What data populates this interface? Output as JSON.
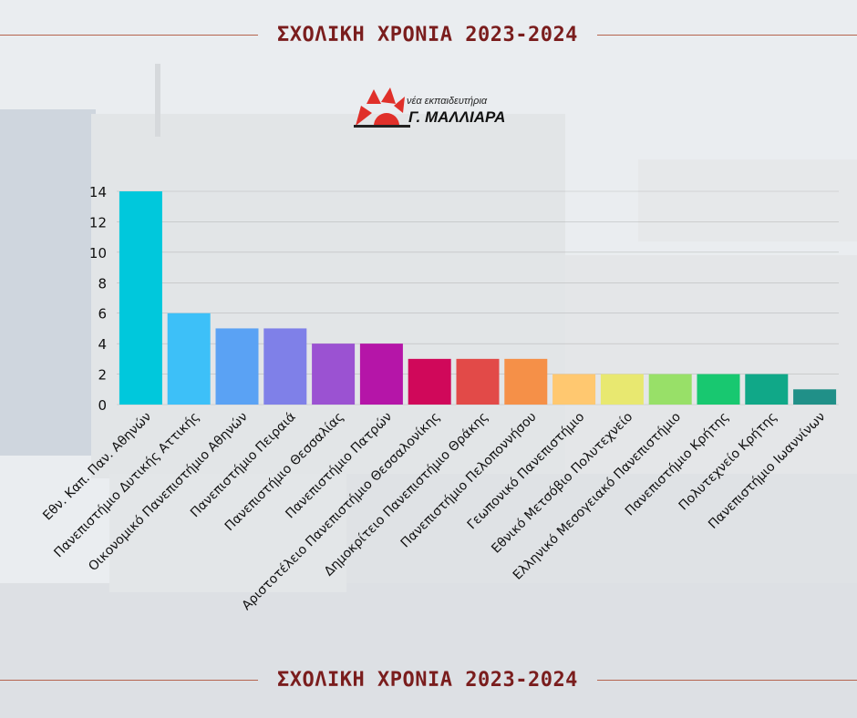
{
  "header": {
    "title": "ΣΧΟΛΙΚΗ ΧΡΟΝΙΑ 2023-2024"
  },
  "footer": {
    "title": "ΣΧΟΛΙΚΗ ΧΡΟΝΙΑ 2023-2024"
  },
  "logo": {
    "line1": "νέα εκπαιδευτήρια",
    "line2": "Γ. ΜΑΛΛΙΑΡΑ",
    "icon": "sun-emblem-icon",
    "color": "#e0302a"
  },
  "colors": {
    "banner_text": "#7a1d1d",
    "banner_line": "#b5644e"
  },
  "chart_data": {
    "type": "bar",
    "title": "",
    "xlabel": "",
    "ylabel": "",
    "ylim": [
      0,
      14
    ],
    "yticks": [
      0,
      2,
      4,
      6,
      8,
      10,
      12,
      14
    ],
    "grid": true,
    "categories": [
      "Εθν. Καπ. Παν. Αθηνών",
      "Πανεπιστήμιο Δυτικής Αττικής",
      "Οικονομικό Πανεπιστήμιο Αθηνών",
      "Πανεπιστήμιο Πειραιά",
      "Πανεπιστήμιο Θεσσαλίας",
      "Πανεπιστήμιο Πατρών",
      "Αριστοτέλειο Πανεπιστήμιο Θεσσαλονίκης",
      "Δημοκρίτειο Πανεπιστήμιο Θράκης",
      "Πανεπιστήμιο Πελοποννήσου",
      "Γεωπονικό Πανεπιστήμιο",
      "Εθνικό Μετσόβιο Πολυτεχνείο",
      "Ελληνικό Μεσογειακό Πανεπιστήμιο",
      "Πανεπιστήμιο Κρήτης",
      "Πολυτεχνείο Κρήτης",
      "Πανεπιστήμιο Ιωαννίνων"
    ],
    "values": [
      14,
      6,
      5,
      5,
      4,
      4,
      3,
      3,
      3,
      2,
      2,
      2,
      2,
      2,
      1
    ],
    "bar_colors": [
      "#00c8dc",
      "#3dc0f8",
      "#5aa2f4",
      "#7f80e8",
      "#9b52d2",
      "#b515a8",
      "#d0085a",
      "#e24a48",
      "#f59048",
      "#ffc870",
      "#e8e870",
      "#98e068",
      "#18c870",
      "#10a888",
      "#209088"
    ]
  }
}
